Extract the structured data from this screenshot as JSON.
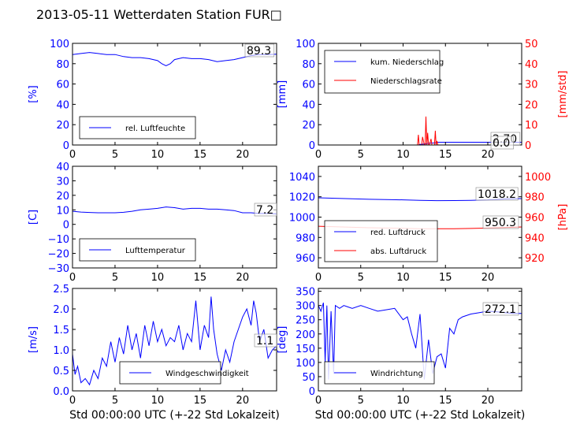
{
  "title": "2013-05-11 Wetterdaten Station FUR□",
  "xlabel": "Std 00:00:00 UTC (+-22 Std Lokalzeit)",
  "colors": {
    "blue": "#0000ff",
    "red": "#ff0000",
    "black": "#000000"
  },
  "chart_data": [
    {
      "id": "humidity",
      "type": "line",
      "ylabel": "[%]",
      "xlim": [
        0,
        24
      ],
      "ylim": [
        0,
        100
      ],
      "xticks": [
        0,
        5,
        10,
        15,
        20
      ],
      "yticks": [
        0,
        20,
        40,
        60,
        80,
        100
      ],
      "legend": [
        "rel. Luftfeuchte"
      ],
      "legend_position": "lower-left",
      "last_value_label": "89.3",
      "series": [
        {
          "name": "rel. Luftfeuchte",
          "color": "#0000ff",
          "x": [
            0,
            1,
            2,
            3,
            4,
            5,
            6,
            7,
            8,
            9,
            10,
            10.5,
            11,
            11.5,
            12,
            13,
            14,
            15,
            16,
            17,
            18,
            19,
            20,
            21,
            22,
            23,
            24
          ],
          "y": [
            89,
            90,
            91,
            90,
            89,
            89,
            87,
            86,
            86,
            85,
            83,
            80,
            78,
            80,
            84,
            86,
            85,
            85,
            84,
            82,
            83,
            84,
            86,
            88,
            89,
            89,
            89.3
          ]
        }
      ]
    },
    {
      "id": "precip",
      "type": "line",
      "ylabel": "[mm]",
      "ylabel_right": "[mm/std]",
      "xlim": [
        0,
        24
      ],
      "ylim": [
        0,
        100
      ],
      "ylim_right": [
        0,
        50
      ],
      "xticks": [
        0,
        5,
        10,
        15,
        20
      ],
      "yticks": [
        0,
        20,
        40,
        60,
        80,
        100
      ],
      "yticks_right": [
        0,
        10,
        20,
        30,
        40,
        50
      ],
      "legend": [
        "kum. Niederschlag",
        "Niederschlagsrate"
      ],
      "legend_position": "upper-left",
      "last_value_label": "2.70",
      "last_value_label_2": "0.0",
      "series": [
        {
          "name": "kum. Niederschlag",
          "color": "#0000ff",
          "axis": "left",
          "x": [
            0,
            11.8,
            12,
            12.7,
            13,
            13.8,
            14.1,
            24
          ],
          "y": [
            0,
            0,
            0.6,
            1.2,
            1.8,
            2.2,
            2.7,
            2.7
          ]
        },
        {
          "name": "Niederschlagsrate",
          "color": "#ff0000",
          "axis": "right",
          "x": [
            0,
            11.7,
            11.8,
            11.9,
            12.0,
            12.2,
            12.3,
            12.5,
            12.6,
            12.7,
            12.8,
            12.9,
            13.0,
            13.1,
            13.3,
            13.4,
            13.7,
            13.8,
            13.9,
            14.0,
            14.1,
            24
          ],
          "y": [
            0,
            0,
            5,
            0,
            0,
            0,
            4,
            0,
            0,
            14,
            0,
            6,
            0,
            0,
            3,
            0,
            0,
            7,
            0,
            2,
            0,
            0
          ]
        }
      ]
    },
    {
      "id": "temperature",
      "type": "line",
      "ylabel": "[C]",
      "xlim": [
        0,
        24
      ],
      "ylim": [
        -30,
        40
      ],
      "xticks": [
        0,
        5,
        10,
        15,
        20
      ],
      "yticks": [
        -30,
        -20,
        -10,
        0,
        10,
        20,
        30,
        40
      ],
      "legend": [
        "Lufttemperatur"
      ],
      "legend_position": "lower-left",
      "last_value_label": "7.2",
      "series": [
        {
          "name": "Lufttemperatur",
          "color": "#0000ff",
          "x": [
            0,
            1,
            2,
            3,
            4,
            5,
            6,
            7,
            8,
            9,
            10,
            11,
            12,
            13,
            14,
            15,
            16,
            17,
            18,
            19,
            20,
            21,
            22,
            23,
            24
          ],
          "y": [
            9,
            8.5,
            8.2,
            8,
            8,
            8,
            8.3,
            9,
            10,
            10.5,
            11,
            12,
            11.5,
            10.5,
            11,
            11,
            10.5,
            10.5,
            10,
            9.5,
            8,
            8,
            7.5,
            7.5,
            7.2
          ]
        }
      ]
    },
    {
      "id": "pressure",
      "type": "line",
      "ylabel_right": "[hPa]",
      "xlim": [
        0,
        24
      ],
      "ylim": [
        950,
        1050
      ],
      "ylim_right": [
        910,
        1010
      ],
      "xticks": [
        0,
        5,
        10,
        15,
        20
      ],
      "yticks": [
        960,
        980,
        1000,
        1020,
        1040
      ],
      "yticks_right": [
        920,
        940,
        960,
        980,
        1000
      ],
      "legend": [
        "red. Luftdruck",
        "abs. Luftdruck"
      ],
      "legend_position": "center-left",
      "last_value_label": "1018.2",
      "last_value_label_2": "950.3",
      "series": [
        {
          "name": "red. Luftdruck",
          "color": "#0000ff",
          "axis": "left",
          "x": [
            0,
            2,
            4,
            6,
            8,
            10,
            12,
            14,
            16,
            18,
            20,
            22,
            24
          ],
          "y": [
            1019,
            1018.5,
            1018,
            1017.5,
            1017.2,
            1017,
            1016.5,
            1016.2,
            1016.3,
            1016.5,
            1017,
            1017.8,
            1018.2
          ]
        },
        {
          "name": "abs. Luftdruck",
          "color": "#ff0000",
          "axis": "right",
          "x": [
            0,
            2,
            4,
            6,
            8,
            10,
            12,
            14,
            16,
            18,
            20,
            22,
            24
          ],
          "y": [
            951,
            950.5,
            950,
            949.5,
            949.2,
            949,
            948.6,
            948.5,
            948.6,
            948.8,
            949.2,
            949.8,
            950.3
          ]
        }
      ]
    },
    {
      "id": "windspeed",
      "type": "line",
      "ylabel": "[m/s]",
      "xlim": [
        0,
        24
      ],
      "ylim": [
        0,
        2.5
      ],
      "xticks": [
        0,
        5,
        10,
        15,
        20
      ],
      "yticks": [
        0.0,
        0.5,
        1.0,
        1.5,
        2.0,
        2.5
      ],
      "legend": [
        "Windgeschwindigkeit"
      ],
      "legend_position": "lower-center",
      "last_value_label": "1.1",
      "series": [
        {
          "name": "Windgeschwindigkeit",
          "color": "#0000ff",
          "x": [
            0,
            0.3,
            0.6,
            1,
            1.5,
            2,
            2.5,
            3,
            3.5,
            4,
            4.5,
            5,
            5.5,
            6,
            6.5,
            7,
            7.5,
            8,
            8.5,
            9,
            9.5,
            10,
            10.5,
            11,
            11.5,
            12,
            12.5,
            13,
            13.5,
            14,
            14.5,
            15,
            15.5,
            16,
            16.3,
            16.6,
            17,
            17.5,
            18,
            18.5,
            19,
            19.5,
            20,
            20.5,
            21,
            21.3,
            21.6,
            22,
            22.5,
            23,
            23.5,
            24
          ],
          "y": [
            0.9,
            0.4,
            0.6,
            0.2,
            0.3,
            0.15,
            0.5,
            0.3,
            0.8,
            0.6,
            1.2,
            0.7,
            1.3,
            0.9,
            1.6,
            1.0,
            1.4,
            0.8,
            1.6,
            1.1,
            1.7,
            1.2,
            1.5,
            1.1,
            1.3,
            1.2,
            1.6,
            1.0,
            1.4,
            1.2,
            2.2,
            1.0,
            1.6,
            1.3,
            2.3,
            1.5,
            0.9,
            0.5,
            1.0,
            0.7,
            1.2,
            1.5,
            1.8,
            2.0,
            1.6,
            2.2,
            1.9,
            1.2,
            1.5,
            0.8,
            1.0,
            1.1
          ]
        }
      ]
    },
    {
      "id": "winddir",
      "type": "line",
      "ylabel": "[deg]",
      "xlim": [
        0,
        24
      ],
      "ylim": [
        0,
        360
      ],
      "xticks": [
        0,
        5,
        10,
        15,
        20
      ],
      "yticks": [
        0,
        50,
        100,
        150,
        200,
        250,
        300,
        350
      ],
      "legend": [
        "Windrichtung"
      ],
      "legend_position": "lower-left",
      "last_value_label": "272.1",
      "series": [
        {
          "name": "Windrichtung",
          "color": "#0000ff",
          "x": [
            0,
            0.3,
            0.6,
            0.8,
            1,
            1.2,
            1.5,
            1.8,
            2,
            2.5,
            3,
            3.5,
            4,
            5,
            6,
            7,
            8,
            9,
            10,
            10.5,
            11,
            11.5,
            12,
            12.5,
            13,
            13.5,
            14,
            14.5,
            15,
            15.5,
            16,
            16.5,
            17,
            18,
            19,
            20,
            21,
            22,
            23,
            24
          ],
          "y": [
            300,
            280,
            310,
            100,
            300,
            40,
            280,
            60,
            300,
            290,
            300,
            295,
            290,
            300,
            290,
            280,
            285,
            290,
            250,
            260,
            200,
            150,
            270,
            40,
            180,
            60,
            120,
            130,
            80,
            220,
            200,
            250,
            260,
            270,
            275,
            280,
            278,
            275,
            272,
            272.1
          ]
        }
      ]
    }
  ]
}
